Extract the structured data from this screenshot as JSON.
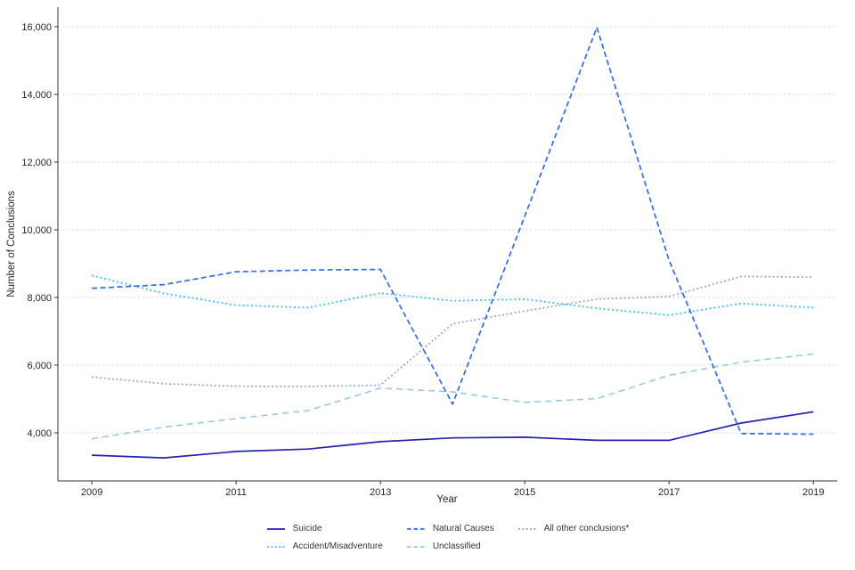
{
  "chart_data": {
    "type": "line",
    "title": "",
    "xlabel": "Year",
    "ylabel": "Number of Conclusions",
    "x": [
      2009,
      2010,
      2011,
      2012,
      2013,
      2014,
      2015,
      2016,
      2017,
      2018,
      2019
    ],
    "x_ticks": [
      2009,
      2011,
      2013,
      2015,
      2017,
      2019
    ],
    "x_tick_labels": [
      "2009",
      "2011",
      "2013",
      "2015",
      "2017",
      "2019"
    ],
    "y_ticks": [
      4000,
      6000,
      8000,
      10000,
      12000,
      14000,
      16000
    ],
    "y_tick_labels": [
      "4,000",
      "6,000",
      "8,000",
      "10,000",
      "12,000",
      "14,000",
      "16,000"
    ],
    "xlim": [
      2008.53,
      2019.33
    ],
    "ylim": [
      2579,
      16579
    ],
    "grid": "horizontal-dashed",
    "legend_position": "bottom-center",
    "colors": {
      "grid": "#d9d9d9",
      "axis": "#333333",
      "tick_label": "#262626"
    },
    "series": [
      {
        "name": "Suicide",
        "style": "solid",
        "color": "#2222b2",
        "values": [
          3340,
          3260,
          3450,
          3520,
          3740,
          3850,
          3870,
          3780,
          3780,
          4290,
          4620
        ]
      },
      {
        "name": "Natural Causes",
        "style": "dashed",
        "color": "#2e6de6",
        "values": [
          8270,
          8380,
          8760,
          8810,
          8830,
          4850,
          10400,
          15980,
          9100,
          3980,
          3960
        ]
      },
      {
        "name": "All other conclusions*",
        "style": "dotted",
        "color": "#8d92e0",
        "values": [
          5650,
          5450,
          5380,
          5370,
          5410,
          7220,
          7600,
          7950,
          8030,
          8620,
          8600
        ]
      },
      {
        "name": "Accident/Misadventure",
        "style": "dotted",
        "color": "#36c3f1",
        "values": [
          8650,
          8120,
          7770,
          7700,
          8130,
          7900,
          7950,
          7680,
          7480,
          7820,
          7700
        ]
      },
      {
        "name": "Unclassified",
        "style": "dashed",
        "color": "#92c5ee",
        "values": [
          3820,
          4170,
          4420,
          4660,
          5320,
          5210,
          4900,
          5010,
          5700,
          6090,
          6330
        ]
      }
    ]
  }
}
